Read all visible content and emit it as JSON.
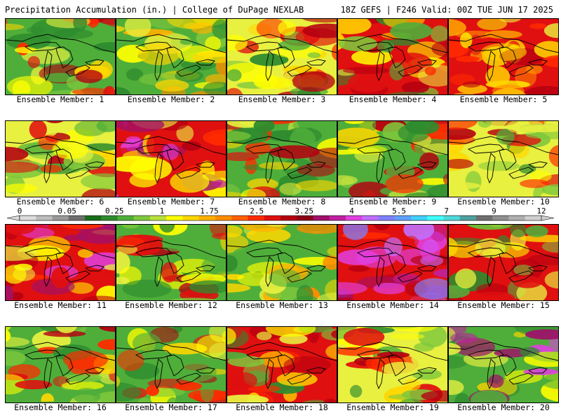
{
  "header": {
    "left": "Precipitation Accumulation (in.) | College of DuPage NEXLAB",
    "right": "18Z GEFS | F246 Valid: 00Z TUE JUN 17 2025"
  },
  "legend": {
    "tick_labels": [
      "0",
      "0.05",
      "0.25",
      "1",
      "1.75",
      "2.5",
      "3.25",
      "4",
      "5.5",
      "7",
      "9",
      "12"
    ],
    "colors": [
      "#dcdcdc",
      "#bdbdbd",
      "#9a9a9a",
      "#6e6e6e",
      "#1a6e1a",
      "#2e8b2e",
      "#4fae3a",
      "#7ec83c",
      "#b9e03c",
      "#ffff00",
      "#ffd700",
      "#ffb000",
      "#ff8c00",
      "#ff6000",
      "#ff2a00",
      "#e01010",
      "#b40010",
      "#8a0018",
      "#a0106a",
      "#c020a0",
      "#e040e0",
      "#c070ff",
      "#8080ff",
      "#60a0ff",
      "#40d0ff",
      "#40ffff",
      "#50d8d8",
      "#50a0a0",
      "#707070",
      "#909090",
      "#b0b0b0",
      "#d0d0d0"
    ]
  },
  "members": [
    {
      "label": "Ensemble Member: 1",
      "cover": [
        "green",
        "yellow",
        "red"
      ]
    },
    {
      "label": "Ensemble Member: 2",
      "cover": [
        "green",
        "yellow",
        "orange"
      ]
    },
    {
      "label": "Ensemble Member: 3",
      "cover": [
        "yellow",
        "red",
        "green"
      ]
    },
    {
      "label": "Ensemble Member: 4",
      "cover": [
        "red",
        "yellow",
        "green"
      ]
    },
    {
      "label": "Ensemble Member: 5",
      "cover": [
        "red",
        "yellow",
        "orange"
      ]
    },
    {
      "label": "Ensemble Member: 6",
      "cover": [
        "yellow",
        "green",
        "red"
      ]
    },
    {
      "label": "Ensemble Member: 7",
      "cover": [
        "red",
        "magenta",
        "yellow"
      ]
    },
    {
      "label": "Ensemble Member: 8",
      "cover": [
        "green",
        "red",
        "yellow"
      ]
    },
    {
      "label": "Ensemble Member: 9",
      "cover": [
        "green",
        "red",
        "yellow"
      ]
    },
    {
      "label": "Ensemble Member: 10",
      "cover": [
        "yellow",
        "green",
        "red"
      ]
    },
    {
      "label": "Ensemble Member: 11",
      "cover": [
        "red",
        "yellow",
        "magenta"
      ]
    },
    {
      "label": "Ensemble Member: 12",
      "cover": [
        "green",
        "yellow",
        "red"
      ]
    },
    {
      "label": "Ensemble Member: 13",
      "cover": [
        "green",
        "yellow",
        "orange"
      ]
    },
    {
      "label": "Ensemble Member: 14",
      "cover": [
        "red",
        "magenta",
        "purple"
      ]
    },
    {
      "label": "Ensemble Member: 15",
      "cover": [
        "red",
        "yellow",
        "green"
      ]
    },
    {
      "label": "Ensemble Member: 16",
      "cover": [
        "green",
        "yellow",
        "red"
      ]
    },
    {
      "label": "Ensemble Member: 17",
      "cover": [
        "green",
        "yellow",
        "red"
      ]
    },
    {
      "label": "Ensemble Member: 18",
      "cover": [
        "red",
        "green",
        "yellow"
      ]
    },
    {
      "label": "Ensemble Member: 19",
      "cover": [
        "yellow",
        "green",
        "red"
      ]
    },
    {
      "label": "Ensemble Member: 20",
      "cover": [
        "green",
        "yellow",
        "magenta"
      ]
    }
  ]
}
